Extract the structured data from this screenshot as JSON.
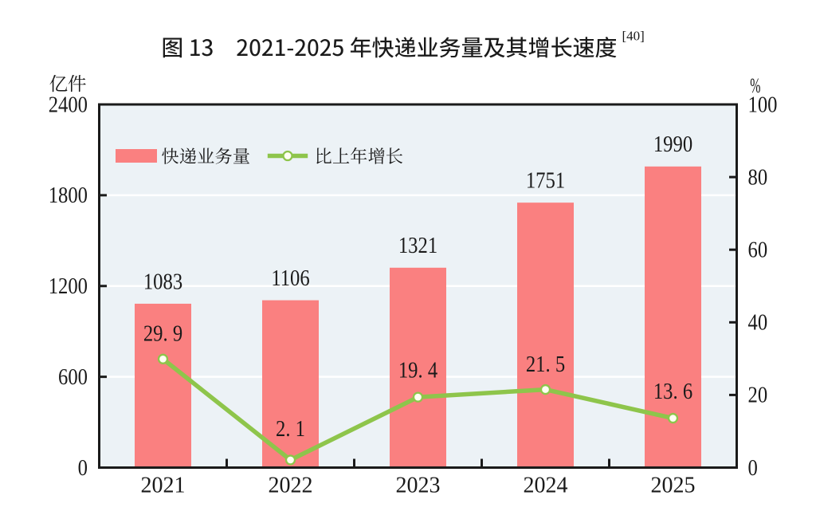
{
  "title": {
    "text": "图 13　2021-2025 年快递业务量及其增长速度",
    "footnote": "[40]"
  },
  "legend": {
    "items": [
      {
        "label": "快递业务量",
        "series": "bar"
      },
      {
        "label": "比上年增长",
        "series": "line"
      }
    ]
  },
  "chart_data": {
    "type": "bar+line",
    "title": "图 13　2021-2025 年快递业务量及其增长速度[40]",
    "categories": [
      "2021",
      "2022",
      "2023",
      "2024",
      "2025"
    ],
    "series": [
      {
        "name": "快递业务量",
        "type": "bar",
        "axis": "left",
        "values": [
          1083,
          1106,
          1321,
          1751,
          1990
        ],
        "labels": [
          "1083",
          "1106",
          "1321",
          "1751",
          "1990"
        ],
        "color": "#FA8080"
      },
      {
        "name": "比上年增长",
        "type": "line",
        "axis": "right",
        "values": [
          29.9,
          2.1,
          19.4,
          21.5,
          13.6
        ],
        "labels": [
          "29. 9",
          "2. 1",
          "19. 4",
          "21. 5",
          "13. 6"
        ],
        "color": "#8EC54B",
        "marker_fill": "#FFFFF2"
      }
    ],
    "left_axis": {
      "unit": "亿件",
      "min": 0,
      "max": 2400,
      "ticks": [
        0,
        600,
        1200,
        1800,
        2400
      ]
    },
    "right_axis": {
      "unit": "%",
      "min": 0,
      "max": 100,
      "ticks": [
        0,
        20,
        40,
        60,
        80,
        100
      ]
    },
    "plot_background": "#ECF2F6",
    "grid_color": "#FFFFFF",
    "axis_color": "#1A1A1A",
    "text_color": "#1A1A1A",
    "grid": "on",
    "legend_position": "top-left-inside"
  }
}
